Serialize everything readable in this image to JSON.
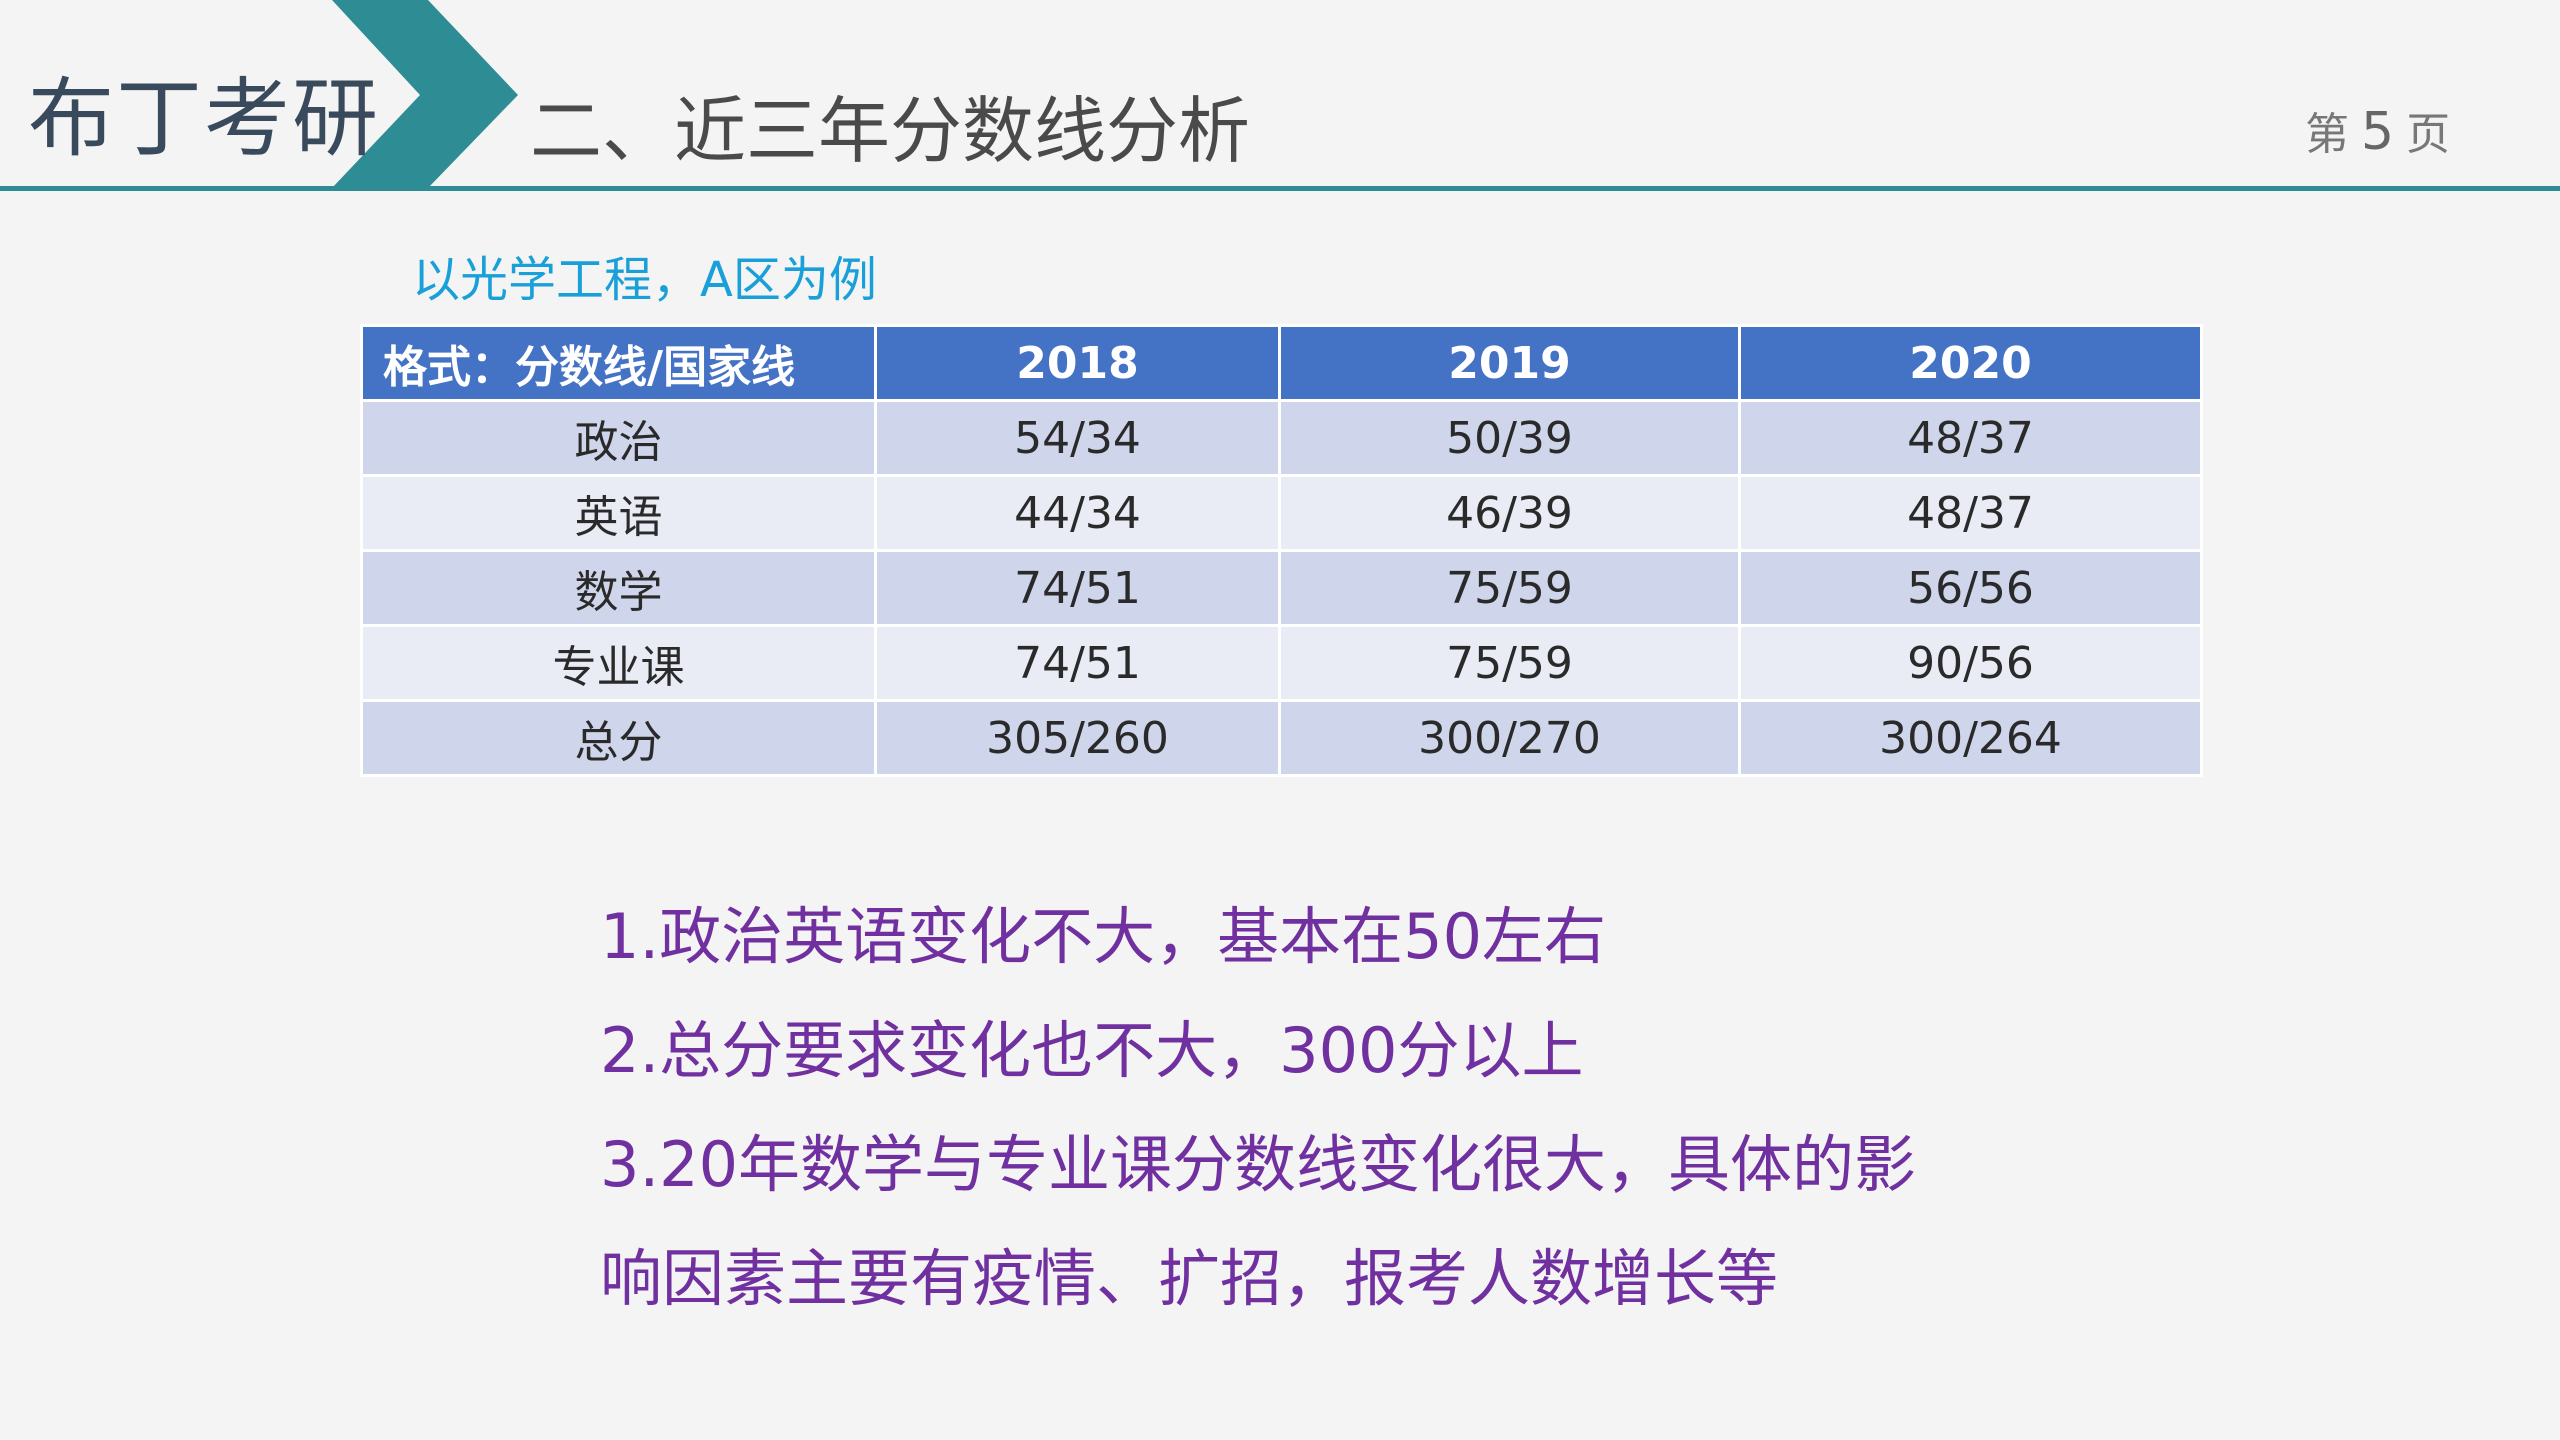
{
  "header": {
    "brand": "布丁考研",
    "section_title": "二、近三年分数线分析",
    "page_prefix": "第",
    "page_number": "5",
    "page_suffix": "页",
    "accent_color": "#2e8c94"
  },
  "subtitle": "以光学工程，A区为例",
  "table": {
    "headers": [
      "格式：分数线/国家线",
      "2018",
      "2019",
      "2020"
    ],
    "rows": [
      [
        "政治",
        "54/34",
        "50/39",
        "48/37"
      ],
      [
        "英语",
        "44/34",
        "46/39",
        "48/37"
      ],
      [
        "数学",
        "74/51",
        "75/59",
        "56/56"
      ],
      [
        "专业课",
        "74/51",
        "75/59",
        "90/56"
      ],
      [
        "总分",
        "305/260",
        "300/270",
        "300/264"
      ]
    ],
    "header_color": "#4472c4",
    "row_color_odd": "#cfd5ea",
    "row_color_even": "#e9ebf5"
  },
  "notes": [
    "1.政治英语变化不大，基本在50左右",
    "2.总分要求变化也不大，300分以上",
    "3.20年数学与专业课分数线变化很大，具体的影",
    "响因素主要有疫情、扩招，报考人数增长等"
  ],
  "notes_color": "#7030a0"
}
